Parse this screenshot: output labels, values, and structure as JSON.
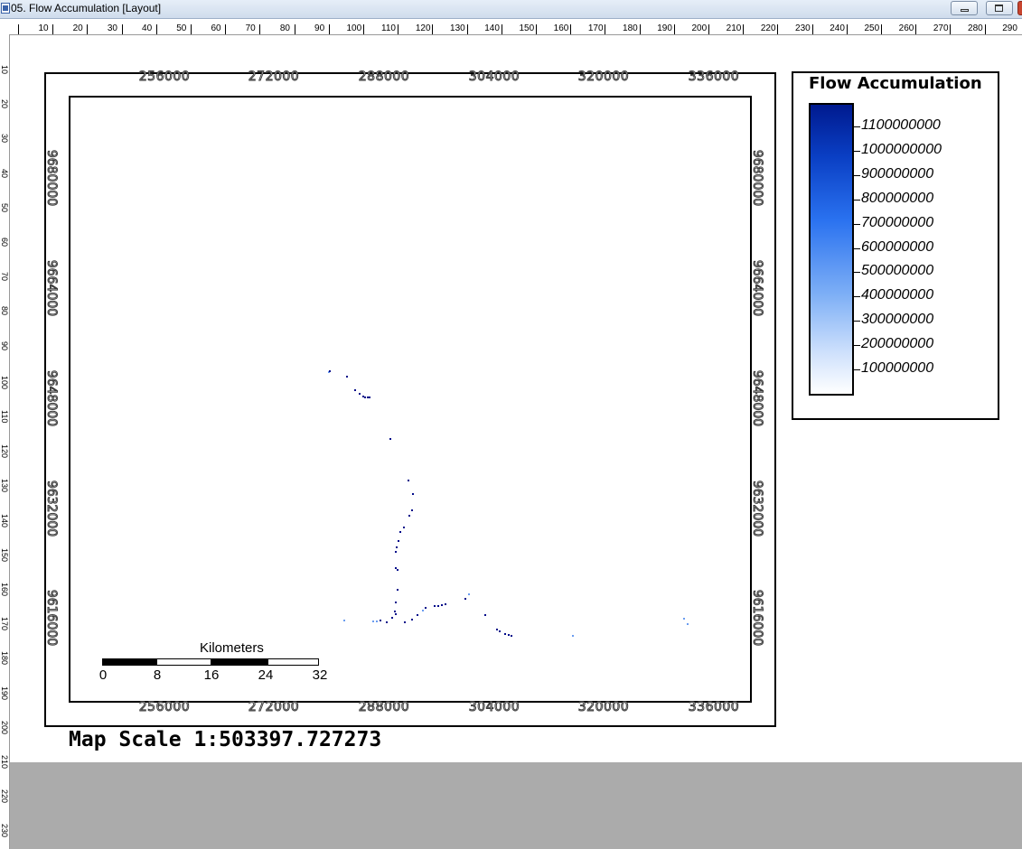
{
  "window": {
    "title": "05. Flow Accumulation [Layout]"
  },
  "ruler": {
    "horizontal": [
      "10",
      "20",
      "30",
      "40",
      "50",
      "60",
      "70",
      "80",
      "90",
      "100",
      "110",
      "120",
      "130",
      "140",
      "150",
      "160",
      "170",
      "180",
      "190",
      "200",
      "210",
      "220",
      "230",
      "240",
      "250",
      "260",
      "270",
      "280",
      "290"
    ],
    "vertical": [
      "10",
      "20",
      "30",
      "40",
      "50",
      "60",
      "70",
      "80",
      "90",
      "100",
      "110",
      "120",
      "130",
      "140",
      "150",
      "160",
      "170",
      "180",
      "190",
      "200",
      "210",
      "220",
      "230"
    ]
  },
  "map": {
    "x_grid_labels": [
      "256000",
      "272000",
      "288000",
      "304000",
      "320000",
      "336000"
    ],
    "y_grid_labels": [
      "9680000",
      "9664000",
      "9648000",
      "9632000",
      "9616000"
    ],
    "scale_text": "Map Scale 1:503397.727273"
  },
  "legend": {
    "title": "Flow Accumulation",
    "labels": [
      "1100000000",
      "1000000000",
      "900000000",
      "800000000",
      "700000000",
      "600000000",
      "500000000",
      "400000000",
      "300000000",
      "200000000",
      "100000000"
    ],
    "ramp_colors": [
      "#001a8f",
      "#2a72f0",
      "#ffffff"
    ]
  },
  "scalebar": {
    "title": "Kilometers",
    "labels": [
      "0",
      "8",
      "16",
      "24",
      "32"
    ]
  },
  "colors": {
    "stream": "#000a8a",
    "stream_light": "#6a9cf0",
    "workspace_gray": "#ababab"
  }
}
